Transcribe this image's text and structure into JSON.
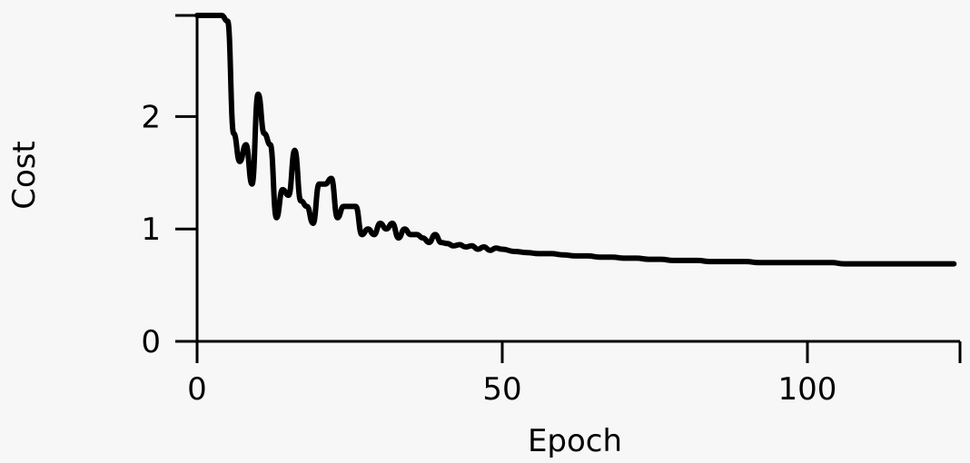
{
  "chart_data": {
    "type": "line",
    "title": "",
    "xlabel": "Epoch",
    "ylabel": "Cost",
    "xlim": [
      0,
      125
    ],
    "ylim": [
      0,
      2.9
    ],
    "xticks": [
      0,
      50,
      100
    ],
    "yticks": [
      0,
      1,
      2
    ],
    "grid": false,
    "line_color": "#000000",
    "background": "#f7f7f7",
    "series": [
      {
        "x": [
          0,
          1,
          2,
          3,
          4,
          5,
          6,
          7,
          8,
          9,
          10,
          11,
          12,
          13,
          14,
          15,
          16,
          17,
          18,
          19,
          20,
          21,
          22,
          23,
          24,
          25,
          26,
          27,
          28,
          29,
          30,
          31,
          32,
          33,
          34,
          35,
          36,
          37,
          38,
          39,
          40,
          41,
          42,
          43,
          44,
          45,
          46,
          47,
          48,
          49,
          50,
          52,
          54,
          56,
          58,
          60,
          62,
          64,
          66,
          68,
          70,
          72,
          74,
          76,
          78,
          80,
          82,
          84,
          86,
          88,
          90,
          92,
          94,
          96,
          98,
          100,
          102,
          104,
          106,
          108,
          110,
          112,
          114,
          116,
          118,
          120,
          122,
          124
        ],
        "y": [
          2.9,
          2.9,
          2.9,
          2.9,
          2.9,
          2.85,
          1.85,
          1.6,
          1.75,
          1.4,
          2.2,
          1.85,
          1.75,
          1.1,
          1.35,
          1.3,
          1.7,
          1.25,
          1.2,
          1.05,
          1.4,
          1.4,
          1.45,
          1.1,
          1.2,
          1.2,
          1.2,
          0.95,
          1.0,
          0.95,
          1.05,
          1.0,
          1.05,
          0.92,
          1.0,
          0.95,
          0.95,
          0.92,
          0.88,
          0.95,
          0.88,
          0.87,
          0.85,
          0.86,
          0.84,
          0.85,
          0.82,
          0.84,
          0.81,
          0.83,
          0.82,
          0.8,
          0.79,
          0.78,
          0.78,
          0.77,
          0.76,
          0.76,
          0.75,
          0.75,
          0.74,
          0.74,
          0.73,
          0.73,
          0.72,
          0.72,
          0.72,
          0.71,
          0.71,
          0.71,
          0.71,
          0.7,
          0.7,
          0.7,
          0.7,
          0.7,
          0.7,
          0.7,
          0.69,
          0.69,
          0.69,
          0.69,
          0.69,
          0.69,
          0.69,
          0.69,
          0.69,
          0.69
        ]
      }
    ]
  }
}
